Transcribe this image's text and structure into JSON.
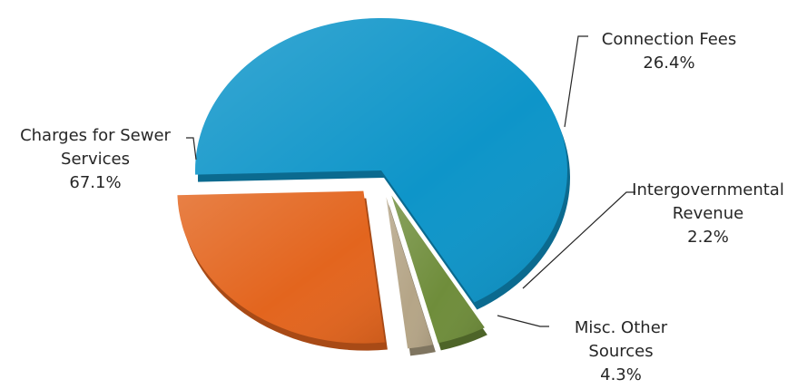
{
  "chart_data": {
    "type": "pie",
    "title": "",
    "exploded": true,
    "slices": [
      {
        "label_lines": [
          "Charges for Sewer",
          "Services"
        ],
        "value": 67.1,
        "value_label": "67.1%",
        "color": "#0e95c9",
        "shadow": "#0b6a8f"
      },
      {
        "label_lines": [
          "Connection Fees"
        ],
        "value": 26.4,
        "value_label": "26.4%",
        "color": "#e3651e",
        "shadow": "#a84a16"
      },
      {
        "label_lines": [
          "Intergovernmental",
          "Revenue"
        ],
        "value": 2.2,
        "value_label": "2.2%",
        "color": "#b5a587",
        "shadow": "#7f7560"
      },
      {
        "label_lines": [
          "Misc. Other",
          "Sources"
        ],
        "value": 4.3,
        "value_label": "4.3%",
        "color": "#6f8d3b",
        "shadow": "#4d6428"
      }
    ]
  }
}
